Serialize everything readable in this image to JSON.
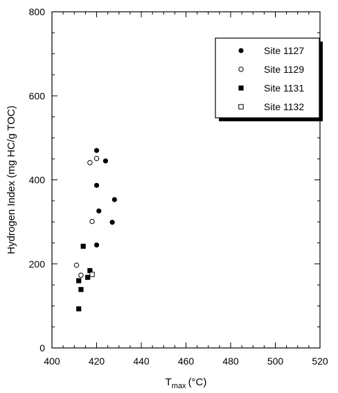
{
  "chart_data": {
    "type": "scatter",
    "title": "",
    "xlabel_main": "T",
    "xlabel_sub": "max",
    "xlabel_unit": "(°C)",
    "ylabel": "Hydrogen Index (mg HC/g TOC)",
    "xlim": [
      400,
      520
    ],
    "ylim": [
      0,
      800
    ],
    "x_ticks": [
      "400",
      "420",
      "440",
      "460",
      "480",
      "500",
      "520"
    ],
    "y_ticks": [
      "0",
      "200",
      "400",
      "600",
      "800"
    ],
    "grid": false,
    "legend_position": "top-right",
    "series": [
      {
        "name": "Site 1127",
        "marker": "filled-circle",
        "points": [
          {
            "x": 420,
            "y": 470
          },
          {
            "x": 424,
            "y": 445
          },
          {
            "x": 420,
            "y": 387
          },
          {
            "x": 428,
            "y": 353
          },
          {
            "x": 421,
            "y": 326
          },
          {
            "x": 427,
            "y": 299
          },
          {
            "x": 420,
            "y": 245
          }
        ]
      },
      {
        "name": "Site 1129",
        "marker": "open-circle",
        "points": [
          {
            "x": 417,
            "y": 441
          },
          {
            "x": 420,
            "y": 451
          },
          {
            "x": 418,
            "y": 301
          },
          {
            "x": 411,
            "y": 197
          },
          {
            "x": 413,
            "y": 173
          }
        ]
      },
      {
        "name": "Site 1131",
        "marker": "filled-square",
        "points": [
          {
            "x": 414,
            "y": 242
          },
          {
            "x": 417,
            "y": 184
          },
          {
            "x": 416,
            "y": 168
          },
          {
            "x": 412,
            "y": 160
          },
          {
            "x": 413,
            "y": 139
          },
          {
            "x": 412,
            "y": 93
          }
        ]
      },
      {
        "name": "Site 1132",
        "marker": "open-square",
        "points": [
          {
            "x": 418,
            "y": 175
          }
        ]
      }
    ]
  }
}
